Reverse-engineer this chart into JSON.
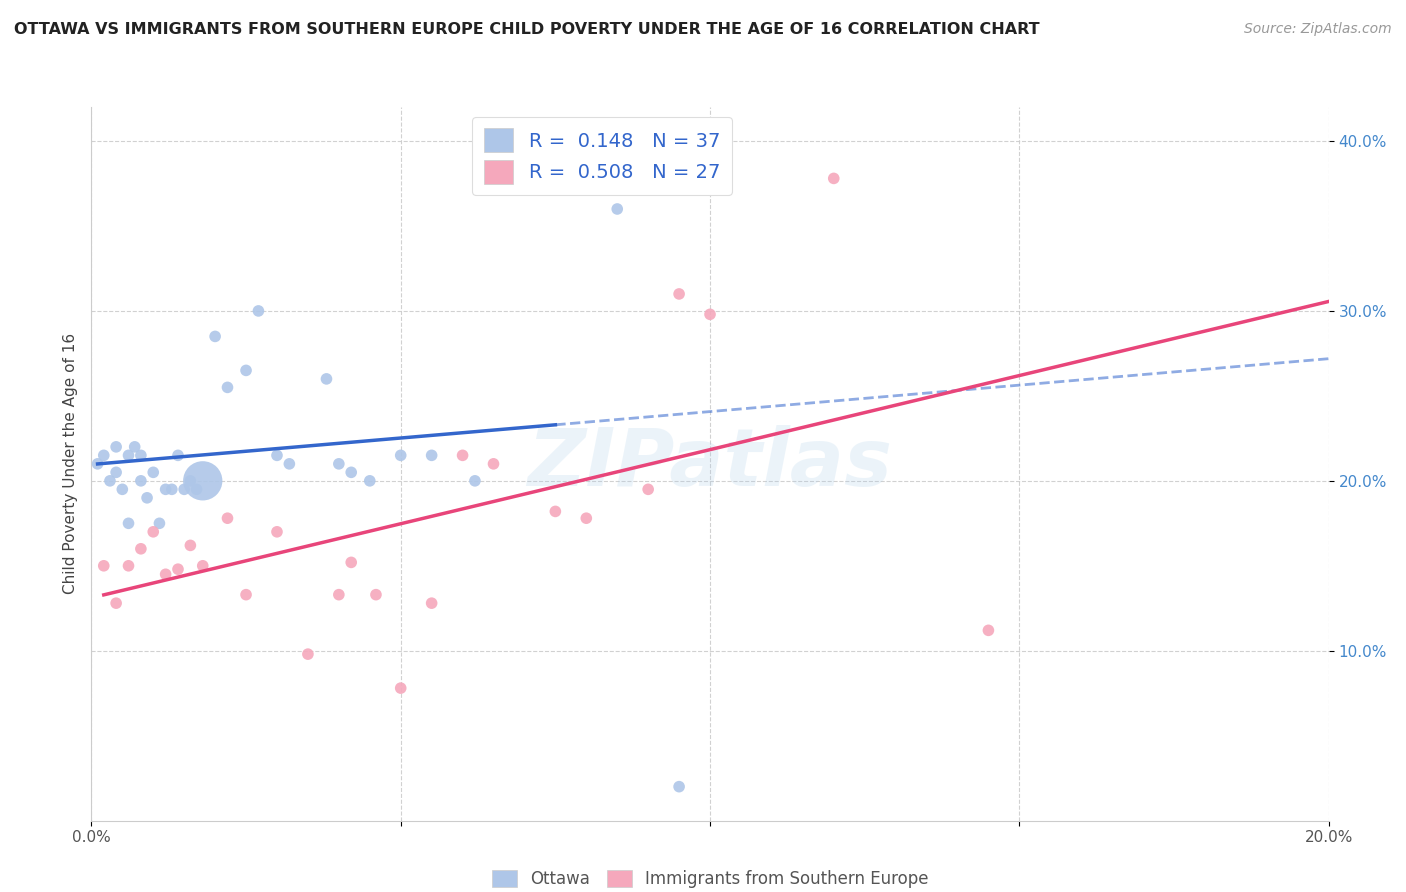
{
  "title": "OTTAWA VS IMMIGRANTS FROM SOUTHERN EUROPE CHILD POVERTY UNDER THE AGE OF 16 CORRELATION CHART",
  "source": "Source: ZipAtlas.com",
  "ylabel": "Child Poverty Under the Age of 16",
  "xlim": [
    0.0,
    0.2
  ],
  "ylim": [
    0.0,
    0.42
  ],
  "ytick_positions": [
    0.1,
    0.2,
    0.3,
    0.4
  ],
  "ytick_labels": [
    "10.0%",
    "20.0%",
    "30.0%",
    "40.0%"
  ],
  "xtick_positions": [
    0.0,
    0.05,
    0.1,
    0.15,
    0.2
  ],
  "xtick_labels": [
    "0.0%",
    "",
    "",
    "",
    "20.0%"
  ],
  "legend_labels": [
    "Ottawa",
    "Immigrants from Southern Europe"
  ],
  "R_ottawa": 0.148,
  "N_ottawa": 37,
  "R_immigrants": 0.508,
  "N_immigrants": 27,
  "ottawa_color": "#aec6e8",
  "immigrants_color": "#f5a8bc",
  "trendline_ottawa_color": "#3366cc",
  "trendline_immigrants_color": "#e8457a",
  "ottawa_x": [
    0.001,
    0.002,
    0.003,
    0.004,
    0.004,
    0.005,
    0.006,
    0.006,
    0.007,
    0.008,
    0.008,
    0.009,
    0.01,
    0.011,
    0.012,
    0.013,
    0.014,
    0.015,
    0.016,
    0.017,
    0.018,
    0.02,
    0.022,
    0.025,
    0.027,
    0.03,
    0.032,
    0.038,
    0.04,
    0.042,
    0.045,
    0.05,
    0.055,
    0.062,
    0.07,
    0.085,
    0.095
  ],
  "ottawa_y": [
    0.21,
    0.215,
    0.2,
    0.205,
    0.22,
    0.195,
    0.215,
    0.175,
    0.22,
    0.215,
    0.2,
    0.19,
    0.205,
    0.175,
    0.195,
    0.195,
    0.215,
    0.195,
    0.2,
    0.195,
    0.2,
    0.285,
    0.255,
    0.265,
    0.3,
    0.215,
    0.21,
    0.26,
    0.21,
    0.205,
    0.2,
    0.215,
    0.215,
    0.2,
    0.395,
    0.36,
    0.02
  ],
  "ottawa_sizes": [
    70,
    70,
    70,
    70,
    70,
    70,
    70,
    70,
    70,
    70,
    70,
    70,
    70,
    70,
    70,
    70,
    70,
    70,
    70,
    70,
    800,
    70,
    70,
    70,
    70,
    70,
    70,
    70,
    70,
    70,
    70,
    70,
    70,
    70,
    70,
    70,
    70
  ],
  "immigrants_x": [
    0.002,
    0.004,
    0.006,
    0.008,
    0.01,
    0.012,
    0.014,
    0.016,
    0.018,
    0.022,
    0.025,
    0.03,
    0.035,
    0.04,
    0.042,
    0.046,
    0.05,
    0.055,
    0.06,
    0.065,
    0.075,
    0.08,
    0.09,
    0.095,
    0.1,
    0.12,
    0.145
  ],
  "immigrants_y": [
    0.15,
    0.128,
    0.15,
    0.16,
    0.17,
    0.145,
    0.148,
    0.162,
    0.15,
    0.178,
    0.133,
    0.17,
    0.098,
    0.133,
    0.152,
    0.133,
    0.078,
    0.128,
    0.215,
    0.21,
    0.182,
    0.178,
    0.195,
    0.31,
    0.298,
    0.378,
    0.112
  ],
  "immigrants_sizes": [
    70,
    70,
    70,
    70,
    70,
    70,
    70,
    70,
    70,
    70,
    70,
    70,
    70,
    70,
    70,
    70,
    70,
    70,
    70,
    70,
    70,
    70,
    70,
    70,
    70,
    70,
    70
  ],
  "watermark": "ZIPatlas",
  "watermark_color": "#a8cce8",
  "grid_color": "#cccccc",
  "background_color": "#ffffff",
  "trendline_solid_xmax_ottawa": 0.075,
  "trendline_solid_xmin_immigrants": 0.0,
  "trendline_xmax_immigrants": 0.2
}
